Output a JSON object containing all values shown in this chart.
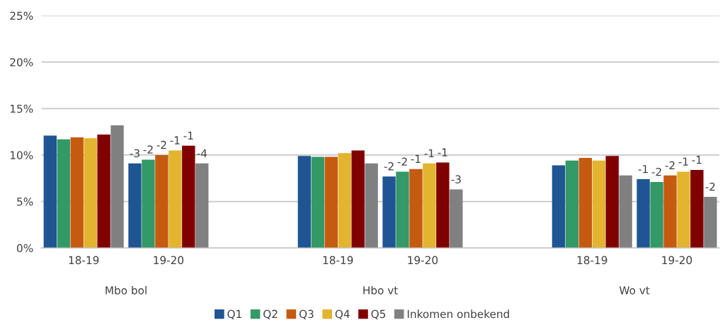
{
  "chart_data": {
    "type": "bar",
    "categories": [
      "18-19",
      "19-20",
      null,
      "18-19",
      "19-20",
      null,
      "18-19",
      "19-20"
    ],
    "annotations": [
      "Mbo bol",
      "Hbo vt",
      "Wo vt",
      "-3",
      "-2",
      "-2",
      "-1",
      "-1",
      "-4",
      "-2",
      "-2",
      "-1",
      "-1",
      "-1",
      "-3",
      "-1",
      "-2",
      "-2",
      "-1",
      "-1",
      "-2"
    ],
    "series": [
      {
        "name": "Q1",
        "color": "#1f5592",
        "values": [
          12.1,
          9.1,
          null,
          9.9,
          7.7,
          null,
          8.9,
          7.4
        ]
      },
      {
        "name": "Q2",
        "color": "#339966",
        "values": [
          11.7,
          9.5,
          null,
          9.8,
          8.2,
          null,
          9.4,
          7.1
        ]
      },
      {
        "name": "Q3",
        "color": "#c55a11",
        "values": [
          11.9,
          10.0,
          null,
          9.8,
          8.5,
          null,
          9.7,
          7.8
        ]
      },
      {
        "name": "Q4",
        "color": "#e3b430",
        "values": [
          11.8,
          10.5,
          null,
          10.2,
          9.1,
          null,
          9.4,
          8.2
        ]
      },
      {
        "name": "Q5",
        "color": "#800000",
        "values": [
          12.2,
          11.0,
          null,
          10.5,
          9.2,
          null,
          9.9,
          8.4
        ]
      },
      {
        "name": "Inkomen onbekend",
        "color": "#808080",
        "values": [
          13.2,
          9.1,
          null,
          9.1,
          6.3,
          null,
          7.8,
          5.5
        ]
      }
    ],
    "ylim": [
      0,
      25
    ],
    "yticks": [
      {
        "value": 0,
        "label": "0%"
      },
      {
        "value": 5,
        "label": "5%"
      },
      {
        "value": 10,
        "label": "10%"
      },
      {
        "value": 15,
        "label": "15%"
      },
      {
        "value": 20,
        "label": "20%"
      },
      {
        "value": 25,
        "label": "25%"
      }
    ],
    "grid": "y",
    "legend": "bottom"
  }
}
